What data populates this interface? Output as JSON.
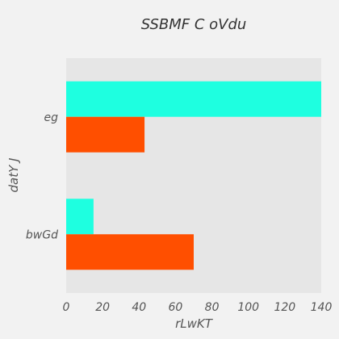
{
  "chart_data": {
    "type": "bar",
    "orientation": "horizontal",
    "title": "SSBMF  C oVdu",
    "xlabel": "rLwKT",
    "ylabel": "datY J",
    "categories": [
      "eg",
      "bwGd"
    ],
    "series": [
      {
        "color": "#1effe0",
        "values": [
          140,
          15
        ]
      },
      {
        "color": "#ff4f00",
        "values": [
          43,
          70
        ]
      }
    ],
    "xlim": [
      0,
      140
    ],
    "xticks": [
      0,
      20,
      40,
      60,
      80,
      100,
      120,
      140
    ],
    "grid": false,
    "legend": "none",
    "plot_background": "#e6e6e6",
    "figure_background": "#f2f2f2"
  }
}
